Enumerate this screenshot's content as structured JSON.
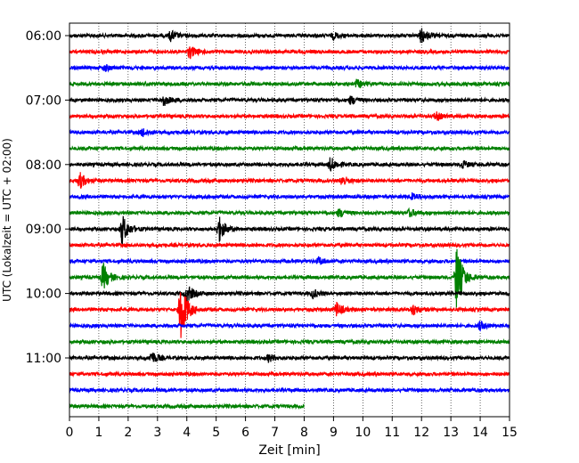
{
  "chart_data": {
    "type": "line",
    "subtype": "helicorder",
    "title": "",
    "xlabel": "Zeit  [min]",
    "ylabel": "UTC (Lokalzeit = UTC + 02:00)",
    "xlim": [
      0,
      15
    ],
    "x_ticks": [
      0,
      1,
      2,
      3,
      4,
      5,
      6,
      7,
      8,
      9,
      10,
      11,
      12,
      13,
      14,
      15
    ],
    "y_ticks": [
      "06:00",
      "07:00",
      "08:00",
      "09:00",
      "10:00",
      "11:00"
    ],
    "grid": "vertical dotted",
    "line_colors": [
      "#000000",
      "#ff0000",
      "#0000ff",
      "#008000"
    ],
    "row_start_times": [
      "06:00",
      "06:15",
      "06:30",
      "06:45",
      "07:00",
      "07:15",
      "07:30",
      "07:45",
      "08:00",
      "08:15",
      "08:30",
      "08:45",
      "09:00",
      "09:15",
      "09:30",
      "09:45",
      "10:00",
      "10:15",
      "10:30",
      "10:45",
      "11:00",
      "11:15",
      "11:30",
      "11:45"
    ],
    "last_row_end_min": 8,
    "events": [
      {
        "row": 0,
        "minute": 3.45,
        "amp": 0.4
      },
      {
        "row": 0,
        "minute": 9.0,
        "amp": 0.25
      },
      {
        "row": 0,
        "minute": 12.0,
        "amp": 0.6
      },
      {
        "row": 1,
        "minute": 4.1,
        "amp": 0.5
      },
      {
        "row": 2,
        "minute": 1.2,
        "amp": 0.25
      },
      {
        "row": 3,
        "minute": 9.8,
        "amp": 0.3
      },
      {
        "row": 4,
        "minute": 3.2,
        "amp": 0.45
      },
      {
        "row": 4,
        "minute": 9.6,
        "amp": 0.3
      },
      {
        "row": 5,
        "minute": 12.5,
        "amp": 0.3
      },
      {
        "row": 6,
        "minute": 2.5,
        "amp": 0.35
      },
      {
        "row": 8,
        "minute": 8.9,
        "amp": 0.55
      },
      {
        "row": 8,
        "minute": 13.4,
        "amp": 0.3
      },
      {
        "row": 9,
        "minute": 0.35,
        "amp": 0.65
      },
      {
        "row": 9,
        "minute": 9.3,
        "amp": 0.4
      },
      {
        "row": 10,
        "minute": 11.7,
        "amp": 0.3
      },
      {
        "row": 11,
        "minute": 9.2,
        "amp": 0.3
      },
      {
        "row": 11,
        "minute": 11.6,
        "amp": 0.3
      },
      {
        "row": 12,
        "minute": 1.8,
        "amp": 1.2
      },
      {
        "row": 12,
        "minute": 5.1,
        "amp": 1.0
      },
      {
        "row": 14,
        "minute": 8.5,
        "amp": 0.3
      },
      {
        "row": 15,
        "minute": 1.15,
        "amp": 1.1
      },
      {
        "row": 15,
        "minute": 13.2,
        "amp": 2.7
      },
      {
        "row": 16,
        "minute": 4.0,
        "amp": 0.8
      },
      {
        "row": 16,
        "minute": 8.3,
        "amp": 0.35
      },
      {
        "row": 17,
        "minute": 3.8,
        "amp": 2.6
      },
      {
        "row": 17,
        "minute": 9.1,
        "amp": 0.55
      },
      {
        "row": 17,
        "minute": 11.7,
        "amp": 0.45
      },
      {
        "row": 18,
        "minute": 14.0,
        "amp": 0.3
      },
      {
        "row": 20,
        "minute": 2.8,
        "amp": 0.5
      },
      {
        "row": 20,
        "minute": 6.8,
        "amp": 0.3
      }
    ]
  }
}
